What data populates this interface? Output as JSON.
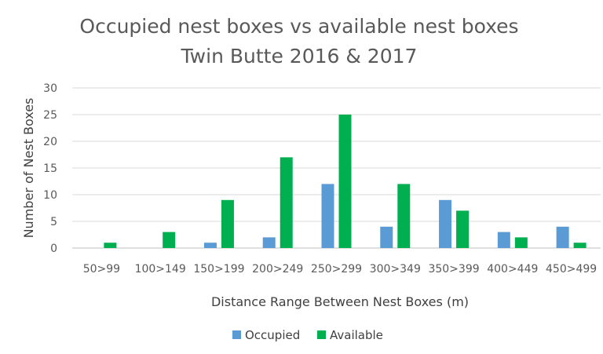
{
  "chart_data": {
    "type": "bar",
    "title": "Occupied nest boxes vs available nest boxes",
    "subtitle": "Twin Butte 2016 & 2017",
    "xlabel": "Distance Range Between Nest Boxes (m)",
    "ylabel": "Number of Nest Boxes",
    "ylim": [
      0,
      30
    ],
    "yticks": [
      0,
      5,
      10,
      15,
      20,
      25,
      30
    ],
    "grid": true,
    "legend_position": "bottom",
    "categories": [
      "50>99",
      "100>149",
      "150>199",
      "200>249",
      "250>299",
      "300>349",
      "350>399",
      "400>449",
      "450>499"
    ],
    "series": [
      {
        "name": "Occupied",
        "color": "#5b9bd5",
        "values": [
          0,
          0,
          1,
          2,
          12,
          4,
          9,
          3,
          4
        ]
      },
      {
        "name": "Available",
        "color": "#00b050",
        "values": [
          1,
          3,
          9,
          17,
          25,
          12,
          7,
          2,
          1
        ]
      }
    ]
  }
}
